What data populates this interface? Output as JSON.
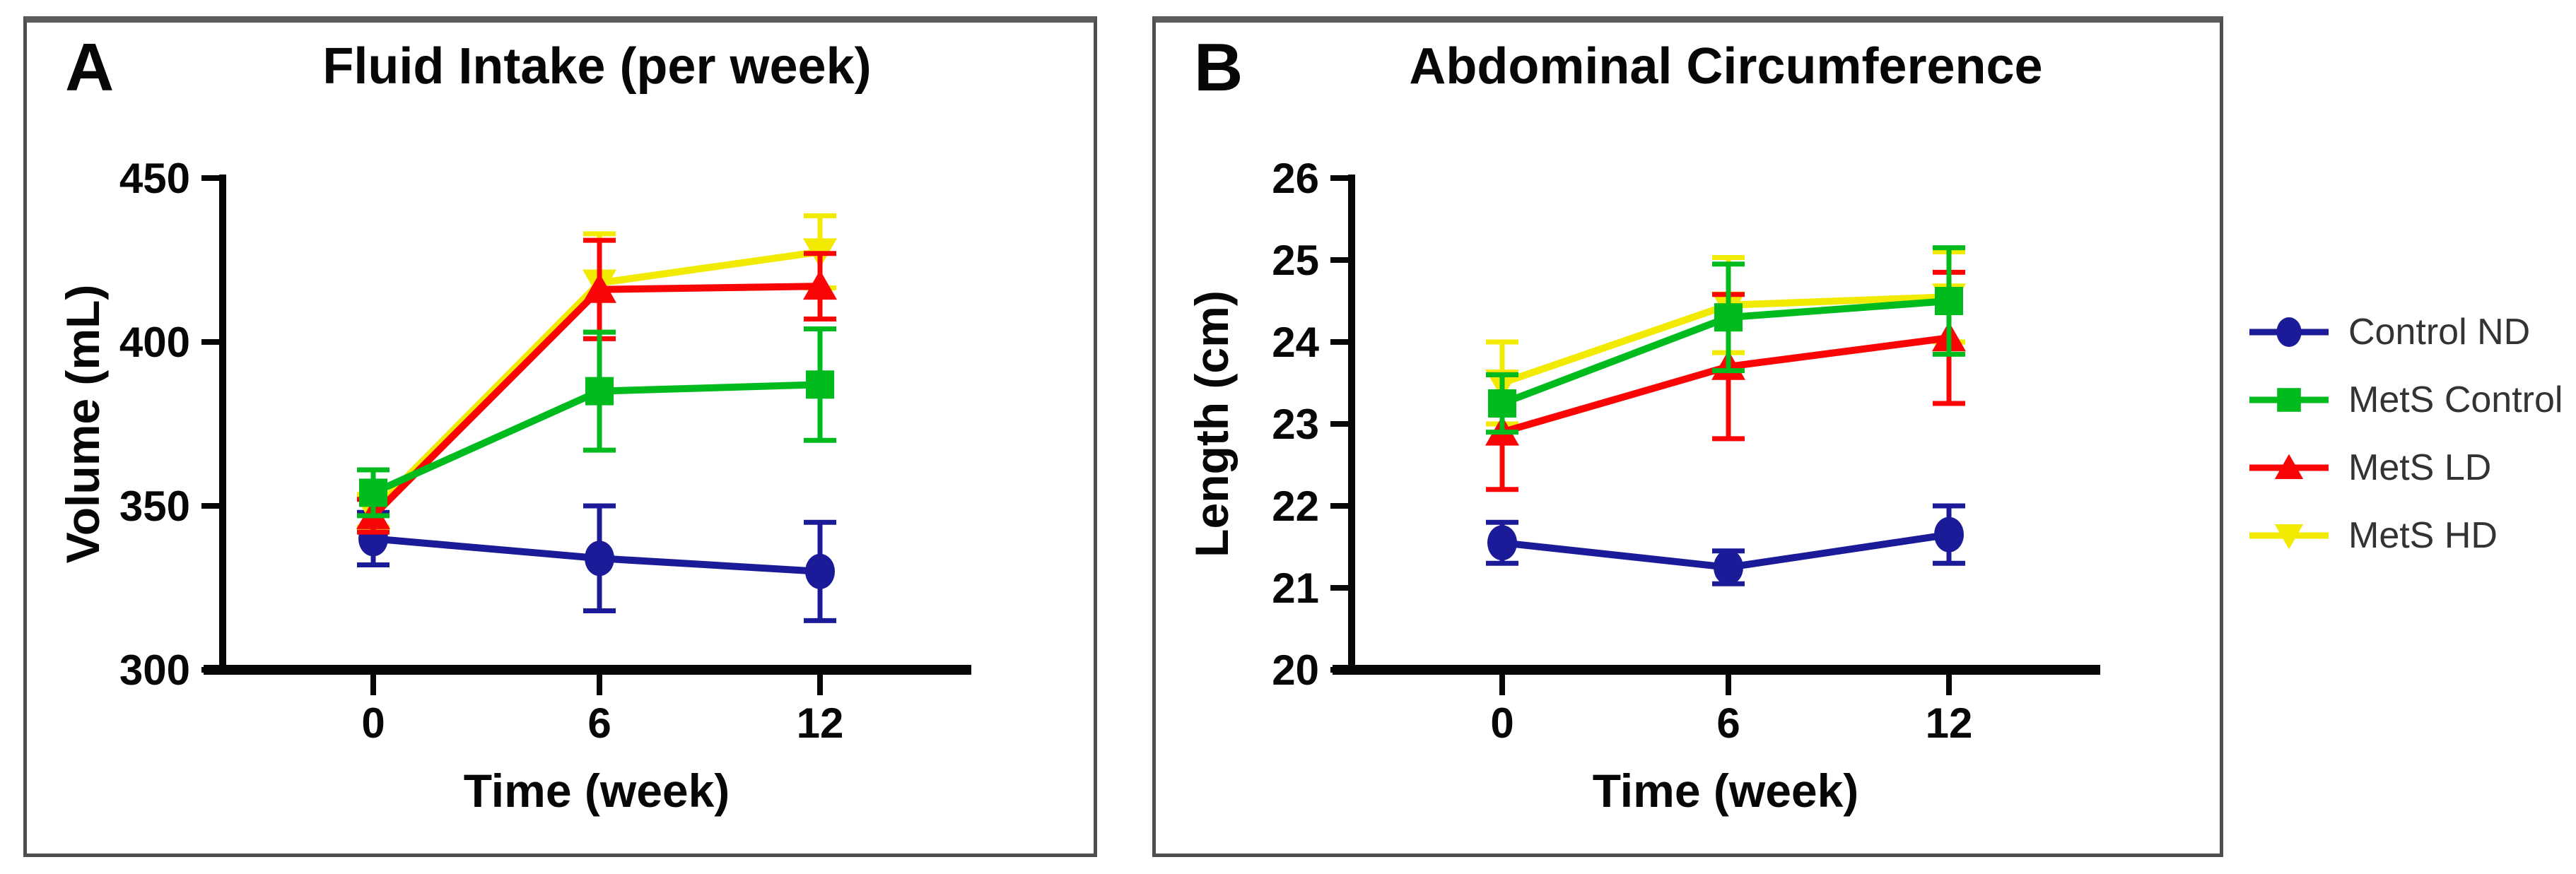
{
  "figure": {
    "background": "#ffffff",
    "panel_border_color": "#4e4e4e",
    "axis_color": "#070707",
    "text_color": "#070707",
    "legend_text_color": "#333333"
  },
  "legend": {
    "items": [
      {
        "label": "Control ND",
        "color": "#1b1b99",
        "marker": "circle"
      },
      {
        "label": "MetS Control",
        "color": "#00bb1e",
        "marker": "square"
      },
      {
        "label": "MetS LD",
        "color": "#fa0505",
        "marker": "triangle-up"
      },
      {
        "label": "MetS HD",
        "color": "#f2ea00",
        "marker": "triangle-down"
      }
    ]
  },
  "chart_data": [
    {
      "type": "line",
      "panel_label": "A",
      "title": "Fluid Intake (per week)",
      "xlabel": "Time (week)",
      "ylabel": "Volume (mL)",
      "x": [
        0,
        6,
        12
      ],
      "xtick_labels": [
        "0",
        "6",
        "12"
      ],
      "ylim": [
        300,
        450
      ],
      "yticks": [
        300,
        350,
        400,
        450
      ],
      "grid": false,
      "legend_position": "outside-right",
      "series": [
        {
          "name": "Control ND",
          "color": "#1b1b99",
          "marker": "circle",
          "values": [
            340,
            334,
            330
          ],
          "errors": [
            8,
            16,
            15
          ]
        },
        {
          "name": "MetS Control",
          "color": "#00bb1e",
          "marker": "square",
          "values": [
            354,
            385,
            387
          ],
          "errors": [
            7,
            18,
            17
          ]
        },
        {
          "name": "MetS LD",
          "color": "#fa0505",
          "marker": "triangle-up",
          "values": [
            347,
            416,
            417
          ],
          "errors": [
            5,
            15,
            10
          ]
        },
        {
          "name": "MetS HD",
          "color": "#f2ea00",
          "marker": "triangle-down",
          "values": [
            348.5,
            418,
            427.5
          ],
          "errors": [
            5,
            15,
            11
          ]
        }
      ]
    },
    {
      "type": "line",
      "panel_label": "B",
      "title": "Abdominal Circumference",
      "xlabel": "Time (week)",
      "ylabel": "Length (cm)",
      "x": [
        0,
        6,
        12
      ],
      "xtick_labels": [
        "0",
        "6",
        "12"
      ],
      "ylim": [
        20,
        26
      ],
      "yticks": [
        20,
        21,
        22,
        23,
        24,
        25,
        26
      ],
      "grid": false,
      "legend_position": "outside-right",
      "series": [
        {
          "name": "Control ND",
          "color": "#1b1b99",
          "marker": "circle",
          "values": [
            21.55,
            21.25,
            21.65
          ],
          "errors": [
            0.25,
            0.2,
            0.35
          ]
        },
        {
          "name": "MetS Control",
          "color": "#00bb1e",
          "marker": "square",
          "values": [
            23.25,
            24.3,
            24.5
          ],
          "errors": [
            0.35,
            0.65,
            0.65
          ]
        },
        {
          "name": "MetS LD",
          "color": "#fa0505",
          "marker": "triangle-up",
          "values": [
            22.9,
            23.7,
            24.05
          ],
          "errors": [
            0.7,
            0.88,
            0.8
          ]
        },
        {
          "name": "MetS HD",
          "color": "#f2ea00",
          "marker": "triangle-down",
          "values": [
            23.5,
            24.45,
            24.55
          ],
          "errors": [
            0.5,
            0.58,
            0.55
          ]
        }
      ]
    }
  ]
}
